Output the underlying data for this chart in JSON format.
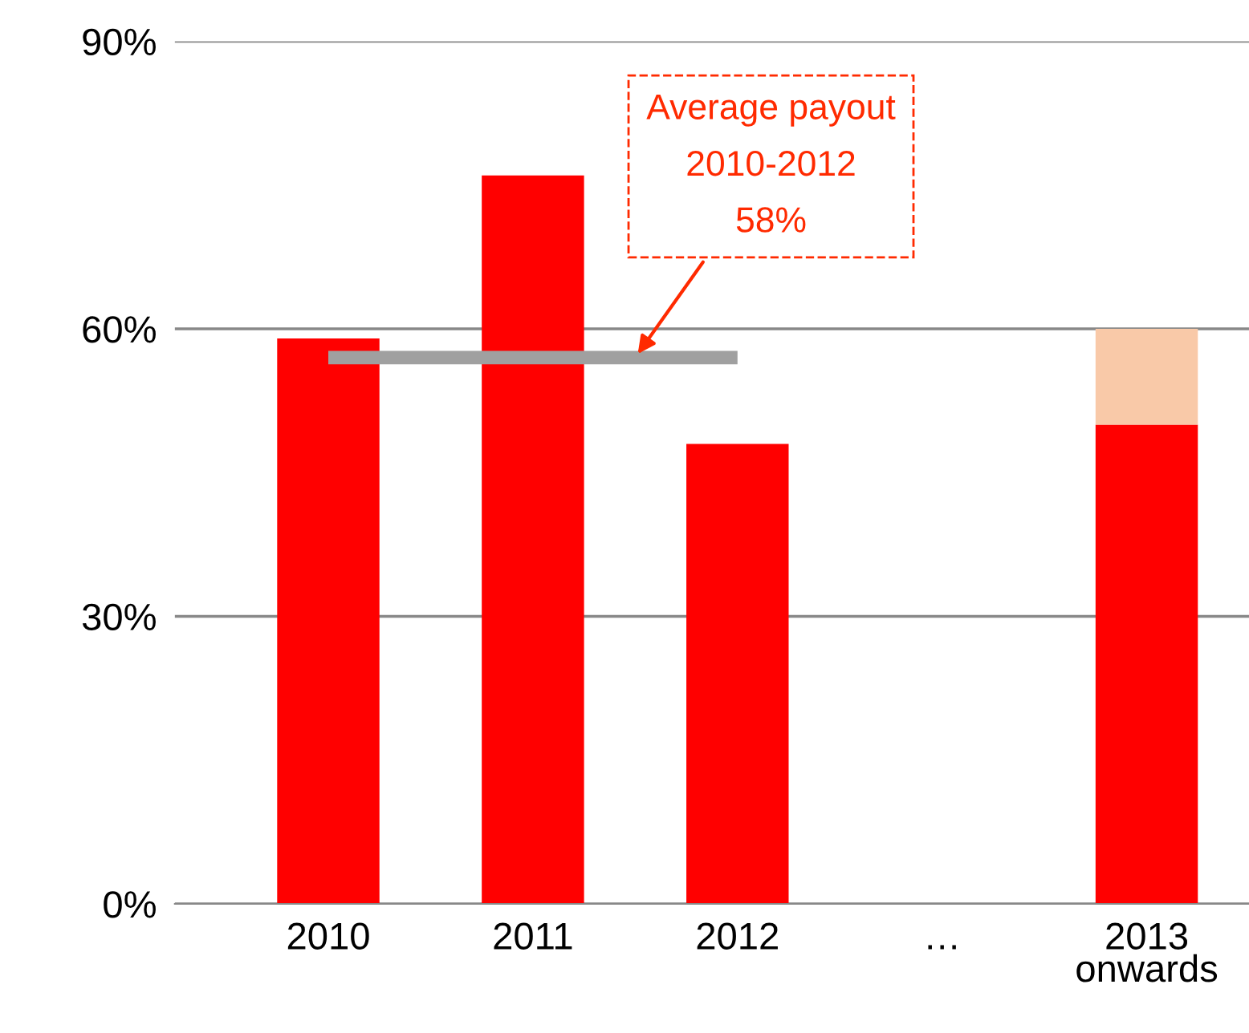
{
  "chart_data": {
    "type": "bar",
    "stacked": true,
    "categories": [
      "2010",
      "2011",
      "2012",
      "…",
      "2013\nonwards"
    ],
    "series": [
      {
        "color": "#ff0000",
        "values": [
          59,
          76,
          48,
          null,
          50
        ]
      },
      {
        "color": "#f9c9a8",
        "values": [
          null,
          null,
          null,
          null,
          10
        ]
      },
      {
        "type": "line",
        "color": "#a0a0a0",
        "values": [
          57,
          57,
          57,
          null,
          null
        ]
      }
    ],
    "ylim": [
      0,
      90
    ],
    "yticks": [
      {
        "value": 0,
        "label": "0%"
      },
      {
        "value": 30,
        "label": "30%"
      },
      {
        "value": 60,
        "label": "60%"
      },
      {
        "value": 90,
        "label": "90%"
      }
    ],
    "grid": "y",
    "legend": false,
    "annotations": [
      "Average payout\n2010-2012\n58%"
    ]
  }
}
